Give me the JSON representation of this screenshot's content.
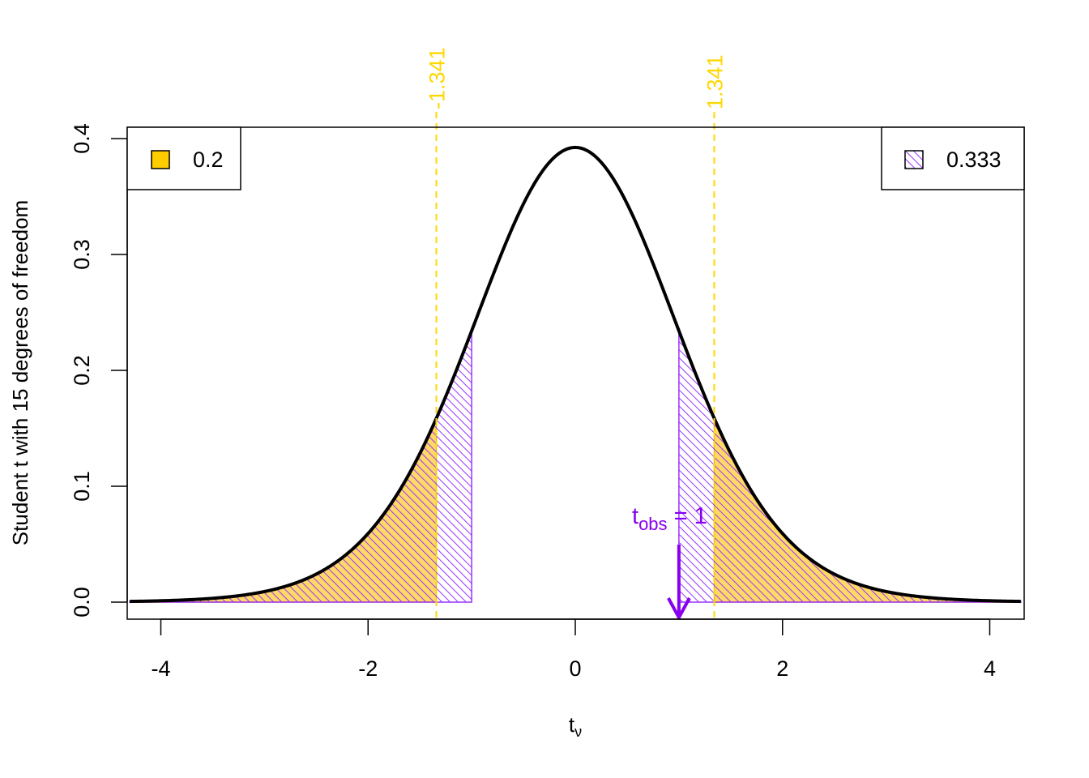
{
  "chart_data": {
    "type": "area",
    "distribution": "student-t",
    "df": 15,
    "xlabel": "t",
    "xlabel_sub": "ν",
    "ylabel": "Student t with 15 degrees of freedom",
    "xlim": [
      -4.3,
      4.3
    ],
    "ylim": [
      0,
      0.4
    ],
    "x_ticks": [
      -4,
      -2,
      0,
      2,
      4
    ],
    "x_tick_labels": [
      "-4",
      "-2",
      "0",
      "2",
      "4"
    ],
    "y_ticks": [
      0.0,
      0.1,
      0.2,
      0.3,
      0.4
    ],
    "y_tick_labels": [
      "0.0",
      "0.1",
      "0.2",
      "0.3",
      "0.4"
    ],
    "critical_values": [
      -1.341,
      1.341
    ],
    "critical_labels": [
      "-1.341",
      "1.341"
    ],
    "critical_color": "#FFD700",
    "alpha_fill_color": "#FFD966",
    "alpha_border_color": "#F0C000",
    "pvalue_color": "#9933FF",
    "t_obs": 1,
    "t_obs_label_main": "t",
    "t_obs_label_sub": "obs",
    "t_obs_label_rest": " = 1",
    "arrow_color": "#8800EE",
    "legend_alpha": {
      "label": "0.2",
      "position": "top-left",
      "swatch_color": "#FFCC00"
    },
    "legend_pvalue": {
      "label": "0.333",
      "position": "top-right"
    }
  }
}
